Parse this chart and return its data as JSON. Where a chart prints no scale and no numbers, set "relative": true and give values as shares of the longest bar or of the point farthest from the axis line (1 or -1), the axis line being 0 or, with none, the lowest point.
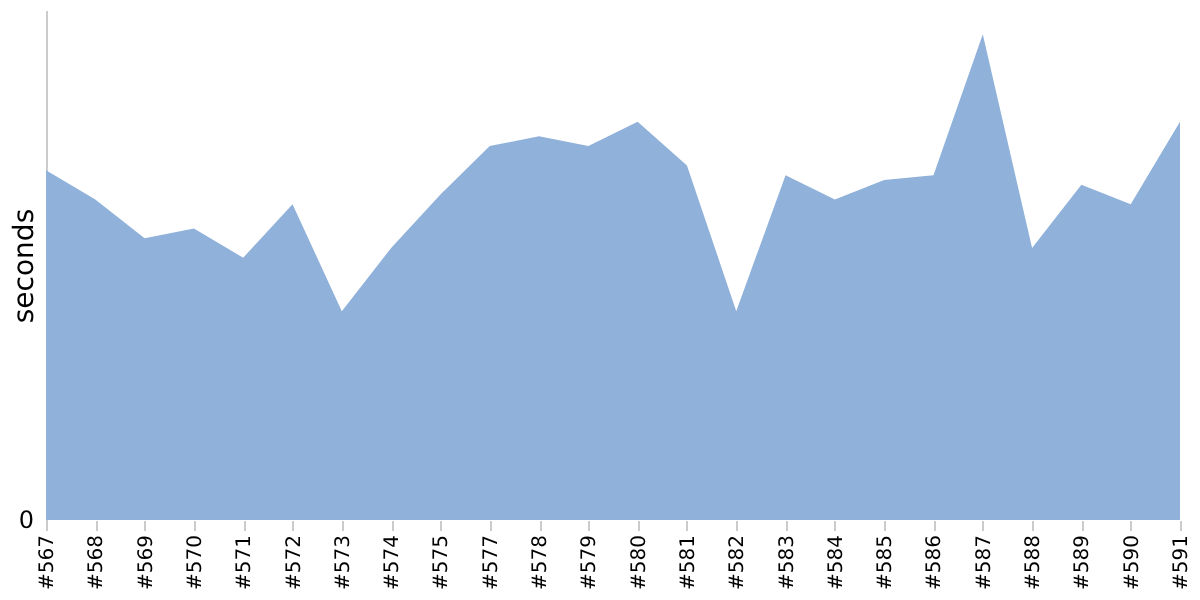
{
  "chart_data": {
    "type": "area",
    "ylabel": "seconds",
    "relative": true,
    "annotations": [
      "0"
    ],
    "color": "#8fb1da",
    "categories": [
      "#567",
      "#568",
      "#569",
      "#570",
      "#571",
      "#572",
      "#573",
      "#574",
      "#575",
      "#577",
      "#578",
      "#579",
      "#580",
      "#581",
      "#582",
      "#583",
      "#584",
      "#585",
      "#586",
      "#587",
      "#588",
      "#589",
      "#590",
      "#591"
    ],
    "values": [
      0.72,
      0.66,
      0.58,
      0.6,
      0.54,
      0.65,
      0.43,
      0.56,
      0.67,
      0.77,
      0.79,
      0.77,
      0.82,
      0.73,
      0.43,
      0.71,
      0.66,
      0.7,
      0.71,
      1,
      0.56,
      0.69,
      0.65,
      0.82
    ]
  }
}
